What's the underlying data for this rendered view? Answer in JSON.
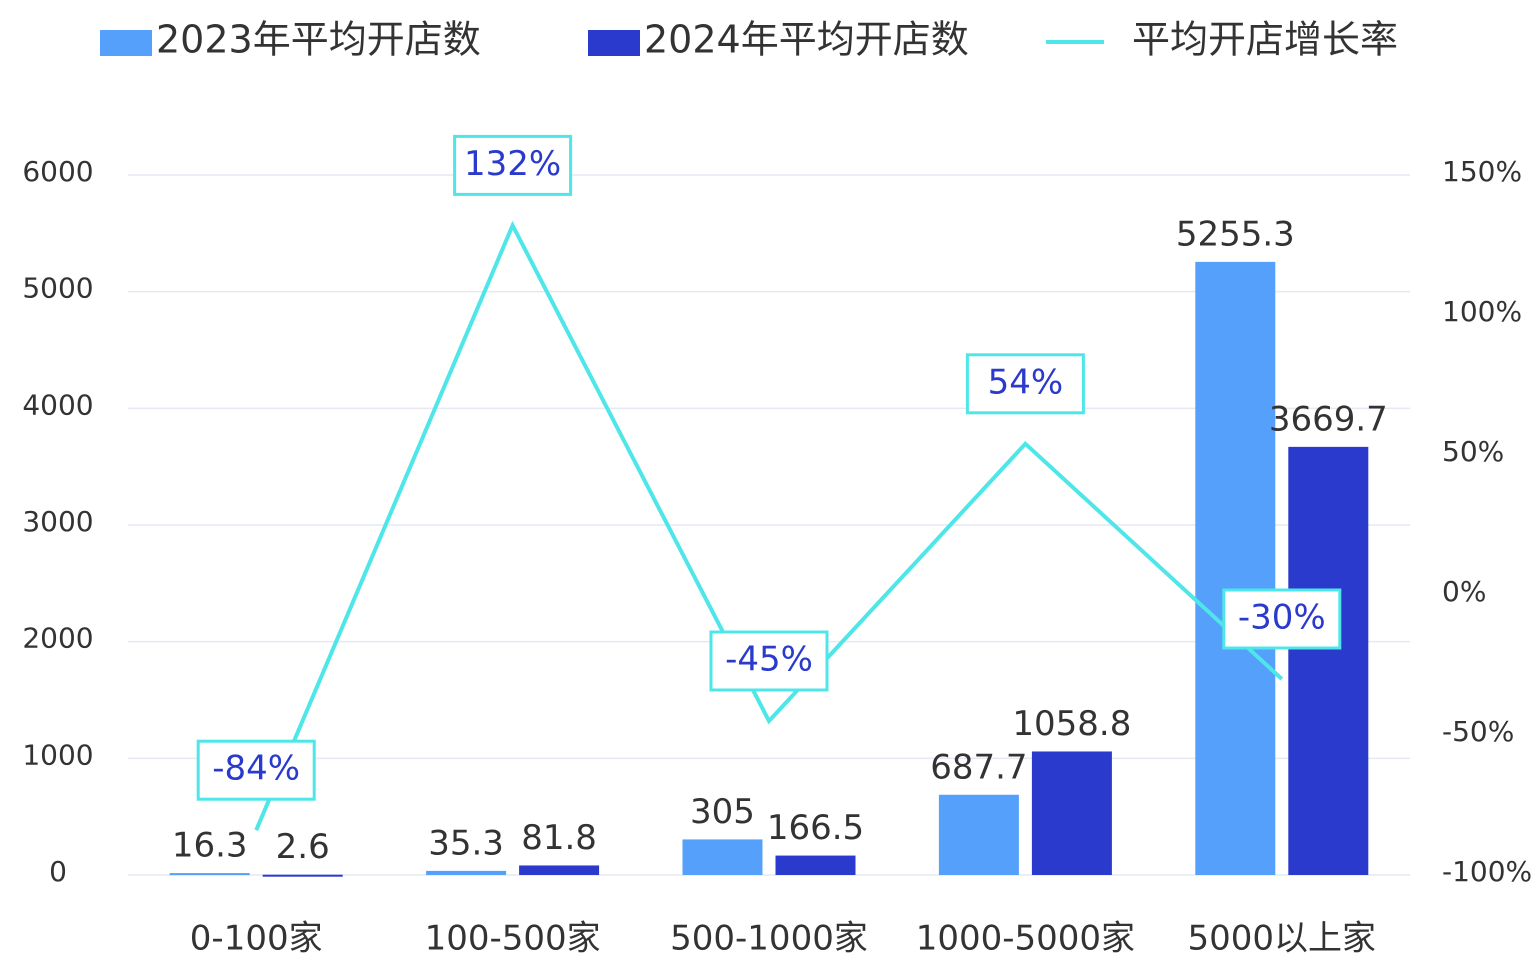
{
  "chart_data": {
    "type": "bar",
    "categories": [
      "0-100家",
      "100-500家",
      "500-1000家",
      "1000-5000家",
      "5000以上家"
    ],
    "series": [
      {
        "name": "2023年平均开店数",
        "color": "#55a0fa",
        "values": [
          16.3,
          35.3,
          305,
          687.7,
          5255.3
        ]
      },
      {
        "name": "2024年平均开店数",
        "color": "#2a3acc",
        "values": [
          2.6,
          81.8,
          166.5,
          1058.8,
          3669.7
        ]
      },
      {
        "name": "平均开店增长率",
        "type": "line",
        "axis": "y2",
        "color": "#4ee6e8",
        "values": [
          -84,
          132,
          -45,
          54,
          -30
        ],
        "value_labels": [
          "-84%",
          "132%",
          "-45%",
          "54%",
          "-30%"
        ]
      }
    ],
    "ylim": [
      0,
      6000
    ],
    "yticks": [
      0,
      1000,
      2000,
      3000,
      4000,
      5000,
      6000
    ],
    "y2lim": [
      -100,
      150
    ],
    "y2ticks": [
      {
        "value": -100,
        "label": "-100%"
      },
      {
        "value": -50,
        "label": "-50%"
      },
      {
        "value": 0,
        "label": "0%"
      },
      {
        "value": 50,
        "label": "50%"
      },
      {
        "value": 100,
        "label": "100%"
      },
      {
        "value": 150,
        "label": "150%"
      }
    ],
    "grid": true,
    "legend": "top"
  }
}
